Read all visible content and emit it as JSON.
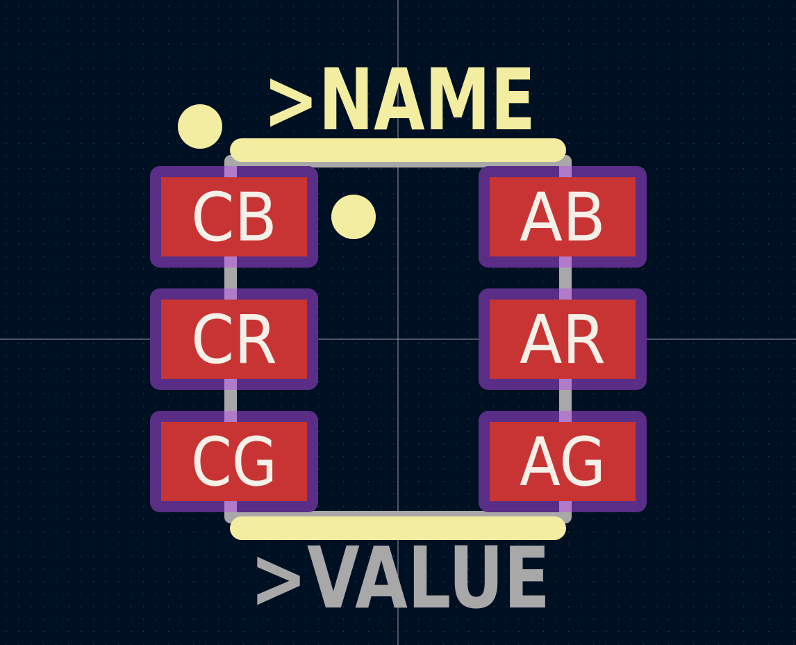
{
  "footprint": {
    "reference_text": ">NAME",
    "value_text": ">VALUE",
    "pads": {
      "left": [
        "CB",
        "CR",
        "CG"
      ],
      "right": [
        "AB",
        "AR",
        "AG"
      ]
    }
  },
  "colors": {
    "background": "#001023",
    "grid_dot": "#2a3d52",
    "crosshair": "#c8c8d0",
    "silkscreen": "#f2eda1",
    "fab_outline": "#a8a8a8",
    "pad_copper": "#c83434",
    "pad_mask": "#5a2e86",
    "pad_text": "#f5f0e8",
    "value_text": "#a8a8a8"
  }
}
